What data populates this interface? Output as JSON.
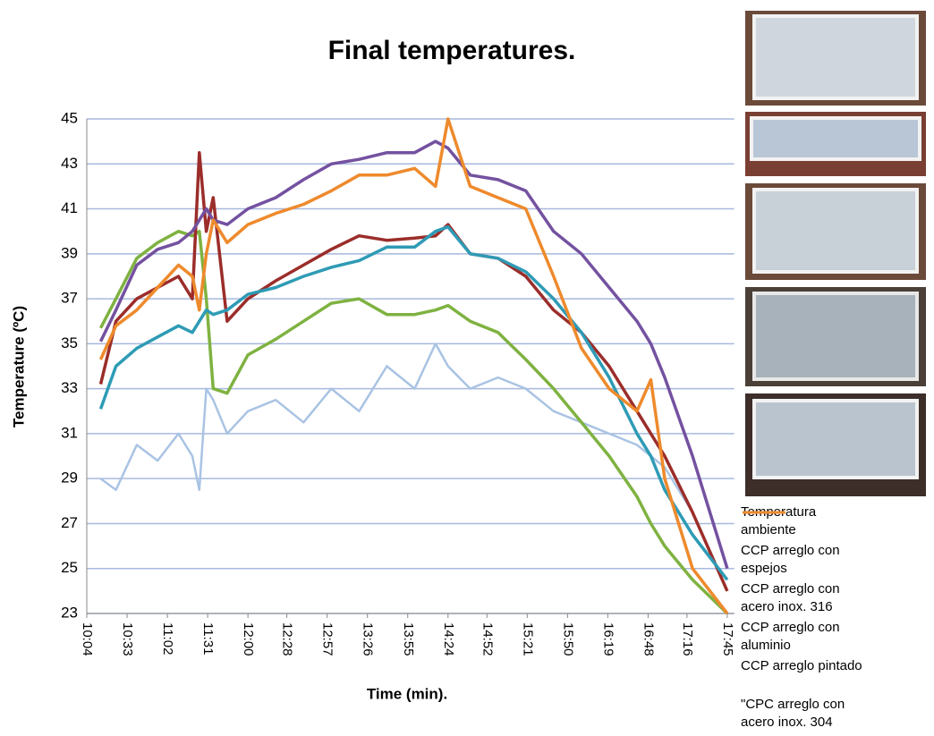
{
  "chart_data": {
    "type": "line",
    "title": "Final  temperatures.",
    "xlabel": "Time (min).",
    "ylabel": "Temperature (ºC)",
    "x": [
      614,
      625,
      640,
      655,
      670,
      680,
      685,
      690,
      695,
      705,
      720,
      740,
      760,
      780,
      800,
      820,
      840,
      855,
      864,
      880,
      900,
      920,
      940,
      960,
      980,
      1000,
      1010,
      1020,
      1040,
      1065
    ],
    "xlim": [
      604,
      1070
    ],
    "xticks": [
      {
        "value": 604,
        "label": "10:04"
      },
      {
        "value": 633,
        "label": "10:33"
      },
      {
        "value": 662,
        "label": "11:02"
      },
      {
        "value": 691,
        "label": "11:31"
      },
      {
        "value": 720,
        "label": "12:00"
      },
      {
        "value": 748,
        "label": "12:28"
      },
      {
        "value": 777,
        "label": "12:57"
      },
      {
        "value": 806,
        "label": "13:26"
      },
      {
        "value": 835,
        "label": "13:55"
      },
      {
        "value": 864,
        "label": "14:24"
      },
      {
        "value": 892,
        "label": "14:52"
      },
      {
        "value": 921,
        "label": "15:21"
      },
      {
        "value": 950,
        "label": "15:50"
      },
      {
        "value": 979,
        "label": "16:19"
      },
      {
        "value": 1008,
        "label": "16:48"
      },
      {
        "value": 1036,
        "label": "17:16"
      },
      {
        "value": 1065,
        "label": "17:45"
      }
    ],
    "ylim": [
      23,
      45
    ],
    "yticks": [
      23,
      25,
      27,
      29,
      31,
      33,
      35,
      37,
      39,
      41,
      43,
      45
    ],
    "grid": true,
    "series": [
      {
        "name": "Temperatura ambiente",
        "color": "#a9c3e3",
        "values": [
          29,
          28.5,
          30.5,
          29.8,
          31,
          30,
          28.5,
          33,
          32.5,
          31,
          32,
          32.5,
          31.5,
          33,
          32,
          34,
          33,
          35,
          34,
          33,
          33.5,
          33,
          32,
          31.5,
          31,
          30.5,
          30,
          29.5,
          27.5,
          null
        ]
      },
      {
        "name": "CCP arreglo con espejos",
        "color": "#7fb241",
        "values": [
          35.7,
          37,
          38.8,
          39.5,
          40,
          39.8,
          40,
          37,
          33,
          32.8,
          34.5,
          35.2,
          36,
          36.8,
          37,
          36.3,
          36.3,
          36.5,
          36.7,
          36,
          35.5,
          34.3,
          33,
          31.5,
          30,
          28.2,
          27,
          26,
          24.5,
          23
        ]
      },
      {
        "name": "CCP arreglo con acero inox. 316",
        "color": "#9b2d2a",
        "values": [
          33.2,
          36,
          37,
          37.5,
          38,
          37,
          43.5,
          40,
          41.5,
          36,
          37,
          37.8,
          38.5,
          39.2,
          39.8,
          39.6,
          39.7,
          39.8,
          40.3,
          39,
          38.8,
          38,
          36.5,
          35.5,
          34,
          32,
          31,
          30,
          27.5,
          24
        ]
      },
      {
        "name": "CCP arreglo con aluminio",
        "color": "#7451a0",
        "values": [
          35.1,
          36.5,
          38.5,
          39.2,
          39.5,
          40,
          40.5,
          41,
          40.5,
          40.3,
          41,
          41.5,
          42.3,
          43,
          43.2,
          43.5,
          43.5,
          44,
          43.7,
          42.5,
          42.3,
          41.8,
          40,
          39,
          37.5,
          36,
          35,
          33.5,
          30,
          25
        ]
      },
      {
        "name": "CCP arreglo pintado",
        "color": "#2e9bb5",
        "values": [
          32.1,
          34,
          34.8,
          35.3,
          35.8,
          35.5,
          36,
          36.5,
          36.3,
          36.5,
          37.2,
          37.5,
          38,
          38.4,
          38.7,
          39.3,
          39.3,
          40,
          40.2,
          39,
          38.8,
          38.2,
          37,
          35.5,
          33.5,
          31,
          30,
          28.5,
          26.5,
          24.5
        ]
      },
      {
        "name": "\"CPC arreglo con acero inox. 304",
        "color": "#ee8a2c",
        "values": [
          34.3,
          35.8,
          36.5,
          37.5,
          38.5,
          38,
          36.5,
          39,
          40.5,
          39.5,
          40.3,
          40.8,
          41.2,
          41.8,
          42.5,
          42.5,
          42.8,
          42,
          45,
          42,
          41.5,
          41,
          38,
          34.8,
          33,
          32,
          33.4,
          29,
          25,
          23
        ]
      }
    ]
  }
}
